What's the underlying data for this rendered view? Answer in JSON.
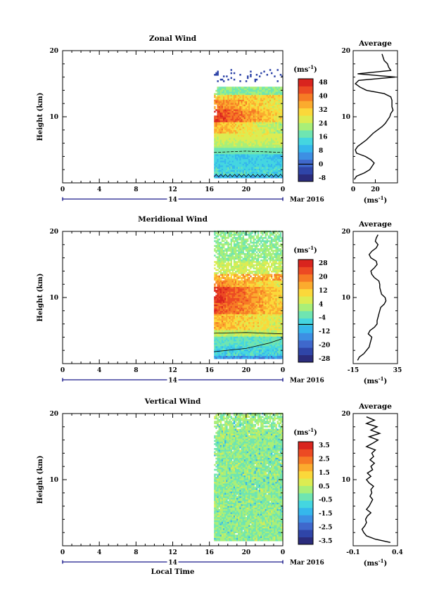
{
  "chart_data": [
    {
      "type": "heatmap",
      "name": "zonal",
      "title": "Zonal Wind",
      "ylabel": "Height (km)",
      "ylim": [
        0,
        20
      ],
      "yticks": [
        10,
        20
      ],
      "xticks": [
        "0",
        "4",
        "8",
        "12",
        "16",
        "20",
        "0"
      ],
      "date_day": "14",
      "date_suffix": "Mar 2016",
      "data_start_hour": 16.5,
      "colorbar": {
        "unit": "(ms",
        "unit_sup": "-1",
        "unit_close": ")",
        "ticks": [
          "48",
          "40",
          "32",
          "24",
          "16",
          "8",
          "0",
          "-8"
        ],
        "zero_index": 6,
        "colors": [
          "#2b2c7c",
          "#2f45a8",
          "#3f68cc",
          "#3d8fe3",
          "#35b7ec",
          "#44d6e0",
          "#6fe5b1",
          "#a9ef78",
          "#dcec52",
          "#fbd83a",
          "#fbab2e",
          "#f67b25",
          "#ec4a23",
          "#d9241e"
        ]
      },
      "profile": {
        "title": "Average",
        "xlim": [
          0,
          40
        ],
        "xticks": [
          "0",
          "20"
        ],
        "xtick_values": [
          0,
          20
        ],
        "unit": "(ms",
        "unit_sup": "-1",
        "unit_close": ")",
        "heights": [
          0.5,
          1.0,
          1.5,
          2.0,
          2.5,
          3.0,
          3.5,
          4.0,
          4.5,
          5.0,
          5.5,
          6.0,
          6.5,
          7.0,
          7.5,
          8.0,
          8.5,
          9.0,
          9.5,
          10.0,
          10.5,
          11.0,
          11.5,
          12.0,
          12.5,
          13.0,
          13.5,
          14.0,
          14.5,
          15.0,
          15.5,
          16.0,
          16.5,
          17.0,
          17.5,
          18.0,
          18.5,
          19.0,
          19.5
        ],
        "values": [
          1,
          3,
          10,
          15,
          17,
          19,
          16,
          11,
          3,
          2,
          4,
          8,
          12,
          15,
          18,
          22,
          26,
          29,
          31,
          33,
          34,
          36,
          35,
          35,
          35,
          34,
          28,
          12,
          6,
          2,
          5,
          38,
          4,
          34,
          32,
          31,
          28,
          27,
          26
        ]
      }
    },
    {
      "type": "heatmap",
      "name": "meridional",
      "title": "Meridional Wind",
      "ylabel": "Height (km)",
      "ylim": [
        0,
        20
      ],
      "yticks": [
        10,
        20
      ],
      "xticks": [
        "0",
        "4",
        "8",
        "12",
        "16",
        "20",
        "0"
      ],
      "date_day": "14",
      "date_suffix": "Mar 2016",
      "data_start_hour": 16.5,
      "colorbar": {
        "unit": "(ms",
        "unit_sup": "-1",
        "unit_close": ")",
        "ticks": [
          "28",
          "20",
          "12",
          "4",
          "-4",
          "-12",
          "-20",
          "-28"
        ],
        "zero_index": 4,
        "colors": [
          "#2b2c7c",
          "#2f45a8",
          "#3f68cc",
          "#3d8fe3",
          "#35b7ec",
          "#44d6e0",
          "#6fe5b1",
          "#a9ef78",
          "#dcec52",
          "#fbd83a",
          "#fbab2e",
          "#f67b25",
          "#ec4a23",
          "#d9241e"
        ]
      },
      "profile": {
        "title": "Average",
        "xlim": [
          -15,
          35
        ],
        "xticks": [
          "-15",
          "35"
        ],
        "xtick_values": [
          -15,
          35
        ],
        "unit": "(ms",
        "unit_sup": "-1",
        "unit_close": ")",
        "heights": [
          0.5,
          1.0,
          1.5,
          2.0,
          2.5,
          3.0,
          3.5,
          4.0,
          4.5,
          5.0,
          5.5,
          6.0,
          6.5,
          7.0,
          7.5,
          8.0,
          8.5,
          9.0,
          9.5,
          10.0,
          10.5,
          11.0,
          11.5,
          12.0,
          12.5,
          13.0,
          13.5,
          14.0,
          14.5,
          15.0,
          15.5,
          16.0,
          16.5,
          17.0,
          17.5,
          18.0,
          18.5,
          19.0,
          19.5
        ],
        "values": [
          -10,
          -8,
          -3,
          0,
          3,
          4,
          5,
          6,
          2,
          4,
          9,
          12,
          12,
          13,
          14,
          15,
          16,
          20,
          22,
          21,
          17,
          16,
          15,
          15,
          14,
          9,
          6,
          5,
          9,
          12,
          11,
          5,
          3,
          6,
          11,
          13,
          10,
          11,
          13
        ]
      }
    },
    {
      "type": "heatmap",
      "name": "vertical",
      "title": "Vertical Wind",
      "ylabel": "Height (km)",
      "xlabel": "Local Time",
      "ylim": [
        0,
        20
      ],
      "yticks": [
        10,
        20
      ],
      "xticks": [
        "0",
        "4",
        "8",
        "12",
        "16",
        "20",
        "0"
      ],
      "date_day": "14",
      "date_suffix": "Mar 2016",
      "data_start_hour": 16.5,
      "colorbar": {
        "unit": "(ms",
        "unit_sup": "-1",
        "unit_close": ")",
        "ticks": [
          "3.5",
          "2.5",
          "1.5",
          "0.5",
          "-0.5",
          "-1.5",
          "-2.5",
          "-3.5"
        ],
        "zero_index": -1,
        "colors": [
          "#2b2c7c",
          "#2f45a8",
          "#3f68cc",
          "#3d8fe3",
          "#35b7ec",
          "#44d6e0",
          "#6fe5b1",
          "#a9ef78",
          "#dcec52",
          "#fbd83a",
          "#fbab2e",
          "#f67b25",
          "#ec4a23",
          "#d9241e"
        ]
      },
      "profile": {
        "title": "Average",
        "xlim": [
          -0.1,
          0.4
        ],
        "xticks": [
          "-0.1",
          "0.4"
        ],
        "xtick_values": [
          -0.1,
          0.4
        ],
        "unit": "(ms",
        "unit_sup": "-1",
        "unit_close": ")",
        "heights": [
          0.5,
          1.0,
          1.5,
          2.0,
          2.5,
          3.0,
          3.5,
          4.0,
          4.5,
          5.0,
          5.5,
          6.0,
          6.5,
          7.0,
          7.5,
          8.0,
          8.5,
          9.0,
          9.5,
          10.0,
          10.5,
          11.0,
          11.5,
          12.0,
          12.5,
          13.0,
          13.5,
          14.0,
          14.5,
          15.0,
          15.5,
          16.0,
          16.5,
          17.0,
          17.5,
          18.0,
          18.5,
          19.0,
          19.5
        ],
        "values": [
          0.32,
          0.15,
          0.05,
          0.02,
          0.0,
          0.03,
          0.05,
          0.04,
          0.06,
          0.1,
          0.05,
          0.08,
          0.1,
          0.12,
          0.09,
          0.11,
          0.1,
          0.13,
          0.08,
          0.05,
          0.1,
          0.06,
          0.12,
          0.1,
          0.14,
          0.09,
          0.13,
          0.11,
          0.15,
          0.05,
          0.12,
          0.18,
          0.08,
          0.2,
          0.1,
          0.17,
          0.05,
          0.14,
          0.05
        ]
      }
    }
  ]
}
